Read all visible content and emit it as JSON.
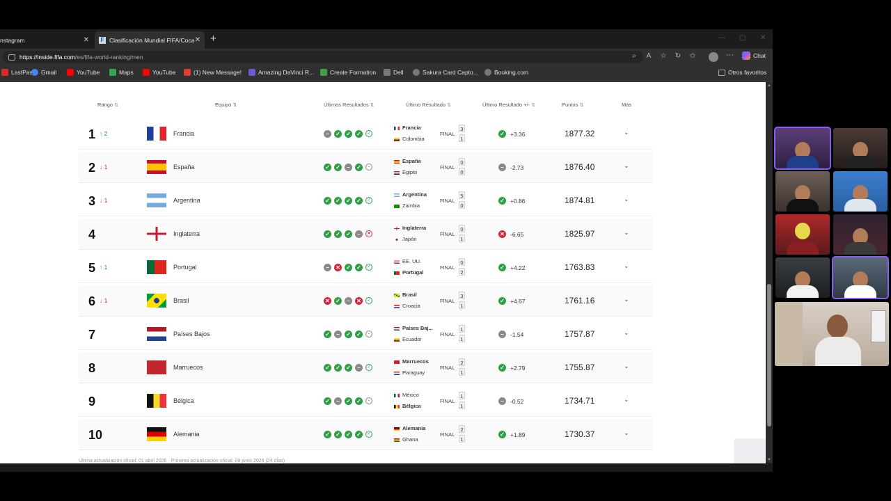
{
  "browser": {
    "tabs": [
      {
        "title": "nstagram"
      },
      {
        "title": "Clasificación Mundial FIFA/Coca-C",
        "favicon": "F",
        "active": true
      }
    ],
    "url_domain": "https://inside.fifa.com",
    "url_path": "/es/fifa-world-ranking/men",
    "chat_label": "Chat",
    "bookmarks": [
      {
        "label": "LastPass",
        "icon": "lastpass-icon",
        "color": "#d32d27"
      },
      {
        "label": "Gmail",
        "icon": "google-icon",
        "color": "#4285f4"
      },
      {
        "label": "YouTube",
        "icon": "youtube-icon",
        "color": "#ff0000"
      },
      {
        "label": "Maps",
        "icon": "maps-icon",
        "color": "#34a853"
      },
      {
        "label": "YouTube",
        "icon": "youtube-icon",
        "color": "#ff0000"
      },
      {
        "label": "(1) New Message!",
        "icon": "message-icon",
        "color": "#e53935"
      },
      {
        "label": "Amazing DaVinci R...",
        "icon": "davinci-icon",
        "color": "#6a5acd"
      },
      {
        "label": "Create Formation",
        "icon": "formation-icon",
        "color": "#43a047"
      },
      {
        "label": "Dell",
        "icon": "folder-icon",
        "color": "#777777"
      },
      {
        "label": "Sakura Card Capto...",
        "icon": "globe-icon",
        "color": "#777777"
      },
      {
        "label": "Booking.com",
        "icon": "globe-icon",
        "color": "#777777"
      }
    ],
    "other_favorites": "Otros favoritos"
  },
  "table": {
    "headers": {
      "rank": "Rango",
      "team": "Equipo",
      "last_results": "Últimos Resultados",
      "last_result": "Último Resultado",
      "last_result_diff": "Último Resultado +/-",
      "points": "Puntos",
      "more": "Más"
    },
    "rows": [
      {
        "rank": "1",
        "move": "2",
        "dir": "up",
        "team": "Francia",
        "flag": "france",
        "results": [
          "D",
          "W",
          "W",
          "W",
          "Wo"
        ],
        "m1": "Francia",
        "m1flag": "france",
        "m1bold": true,
        "m2": "Colombia",
        "m2flag": "colombia",
        "m2bold": false,
        "final": "FINAL",
        "s1": "3",
        "s2": "1",
        "rtype": "W",
        "diff": "+3.36",
        "points": "1877.32"
      },
      {
        "rank": "2",
        "move": "1",
        "dir": "down",
        "team": "España",
        "flag": "spain",
        "results": [
          "W",
          "W",
          "D",
          "W",
          "Do"
        ],
        "m1": "España",
        "m1flag": "spain",
        "m1bold": true,
        "m2": "Egipto",
        "m2flag": "egypt",
        "m2bold": false,
        "final": "FINAL",
        "s1": "0",
        "s2": "0",
        "rtype": "D",
        "diff": "-2.73",
        "points": "1876.40"
      },
      {
        "rank": "3",
        "move": "1",
        "dir": "down",
        "team": "Argentina",
        "flag": "argentina",
        "results": [
          "W",
          "W",
          "W",
          "W",
          "Wo"
        ],
        "m1": "Argentina",
        "m1flag": "argentina",
        "m1bold": true,
        "m2": "Zambia",
        "m2flag": "zambia",
        "m2bold": false,
        "final": "FINAL",
        "s1": "5",
        "s2": "0",
        "rtype": "W",
        "diff": "+0.86",
        "points": "1874.81"
      },
      {
        "rank": "4",
        "move": "",
        "dir": "",
        "team": "Inglaterra",
        "flag": "england",
        "results": [
          "W",
          "W",
          "W",
          "D",
          "Lo"
        ],
        "m1": "Inglaterra",
        "m1flag": "england",
        "m1bold": true,
        "m2": "Japón",
        "m2flag": "japan",
        "m2bold": false,
        "final": "FINAL",
        "s1": "0",
        "s2": "1",
        "rtype": "L",
        "diff": "-6.65",
        "points": "1825.97"
      },
      {
        "rank": "5",
        "move": "1",
        "dir": "up",
        "team": "Portugal",
        "flag": "portugal",
        "results": [
          "D",
          "L",
          "W",
          "W",
          "Wo"
        ],
        "m1": "EE. UU.",
        "m1flag": "usa",
        "m1bold": false,
        "m2": "Portugal",
        "m2flag": "portugal",
        "m2bold": true,
        "final": "FINAL",
        "s1": "0",
        "s2": "2",
        "rtype": "W",
        "diff": "+4.22",
        "points": "1763.83"
      },
      {
        "rank": "6",
        "move": "1",
        "dir": "down",
        "team": "Brasil",
        "flag": "brazil",
        "results": [
          "L",
          "W",
          "D",
          "L",
          "Wo"
        ],
        "m1": "Brasil",
        "m1flag": "brazil",
        "m1bold": true,
        "m2": "Croacia",
        "m2flag": "croatia",
        "m2bold": false,
        "final": "FINAL",
        "s1": "3",
        "s2": "1",
        "rtype": "W",
        "diff": "+4.67",
        "points": "1761.16"
      },
      {
        "rank": "7",
        "move": "",
        "dir": "",
        "team": "Países Bajos",
        "flag": "netherlands",
        "results": [
          "W",
          "D",
          "W",
          "W",
          "Do"
        ],
        "m1": "Países Baj...",
        "m1flag": "netherlands",
        "m1bold": true,
        "m2": "Ecuador",
        "m2flag": "ecuador",
        "m2bold": false,
        "final": "FINAL",
        "s1": "1",
        "s2": "1",
        "rtype": "D",
        "diff": "-1.54",
        "points": "1757.87"
      },
      {
        "rank": "8",
        "move": "",
        "dir": "",
        "team": "Marruecos",
        "flag": "morocco",
        "results": [
          "W",
          "W",
          "W",
          "D",
          "Wo"
        ],
        "m1": "Marruecos",
        "m1flag": "morocco",
        "m1bold": true,
        "m2": "Paraguay",
        "m2flag": "paraguay",
        "m2bold": false,
        "final": "FINAL",
        "s1": "2",
        "s2": "1",
        "rtype": "W",
        "diff": "+2.79",
        "points": "1755.87"
      },
      {
        "rank": "9",
        "move": "",
        "dir": "",
        "team": "Bélgica",
        "flag": "belgium",
        "results": [
          "W",
          "D",
          "W",
          "W",
          "Do"
        ],
        "m1": "México",
        "m1flag": "mexico",
        "m1bold": false,
        "m2": "Bélgica",
        "m2flag": "belgium",
        "m2bold": true,
        "final": "FINAL",
        "s1": "1",
        "s2": "1",
        "rtype": "D",
        "diff": "-0.52",
        "points": "1734.71"
      },
      {
        "rank": "10",
        "move": "",
        "dir": "",
        "team": "Alemania",
        "flag": "germany",
        "results": [
          "W",
          "W",
          "W",
          "W",
          "Wo"
        ],
        "m1": "Alemania",
        "m1flag": "germany",
        "m1bold": true,
        "m2": "Ghana",
        "m2flag": "ghana",
        "m2bold": false,
        "final": "FINAL",
        "s1": "2",
        "s2": "1",
        "rtype": "W",
        "diff": "+1.89",
        "points": "1730.37"
      }
    ]
  },
  "footer_note": "Última actualización oficial: 01 abril 2026 · Próxima actualización oficial: 09 junio 2026 (24 días)",
  "colors": {
    "win": "#2f9e44",
    "draw": "#8a8a8a",
    "loss": "#d6243a",
    "cam_active": "#8b5cf6"
  }
}
